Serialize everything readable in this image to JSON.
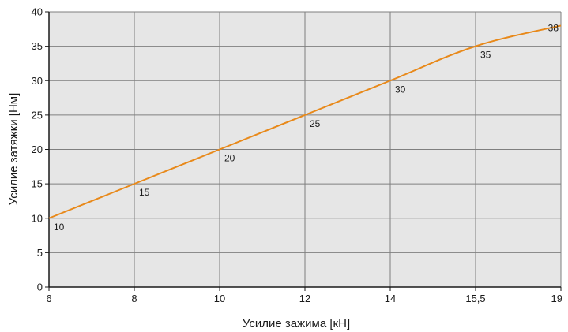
{
  "chart_data": {
    "type": "line",
    "xlabel": "Усилие зажима [кН]",
    "ylabel": "Усилие затяжки [Нм]",
    "x_ticks": [
      "6",
      "8",
      "10",
      "12",
      "14",
      "15,5",
      "19"
    ],
    "y_ticks": [
      "0",
      "5",
      "10",
      "15",
      "20",
      "25",
      "30",
      "35",
      "40"
    ],
    "ylim": [
      0,
      40
    ],
    "grid": true,
    "series": [
      {
        "x": [
          "6",
          "8",
          "10",
          "12",
          "14",
          "15,5",
          "19"
        ],
        "values": [
          10,
          15,
          20,
          25,
          30,
          35,
          38
        ],
        "labels": [
          "10",
          "15",
          "20",
          "25",
          "30",
          "35",
          "38"
        ],
        "color": "#e8891a"
      }
    ],
    "colors": {
      "plot_background": "#e6e6e6",
      "grid": "#7f7f7f",
      "axis": "#1a1a1a"
    }
  }
}
